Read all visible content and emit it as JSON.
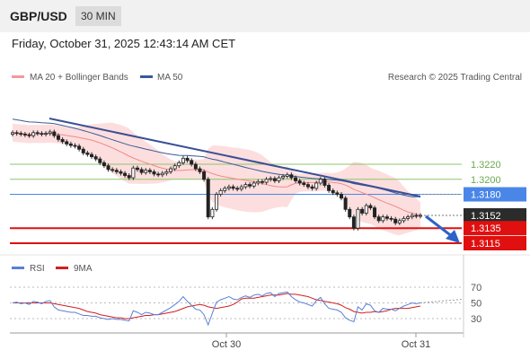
{
  "header": {
    "pair": "GBP/USD",
    "timeframe": "30 MIN"
  },
  "datetime": "Friday, October 31, 2025 12:43:14 AM CET",
  "legend": {
    "ma20": "MA 20 + Bollinger Bands",
    "ma50": "MA 50",
    "credit": "Research © 2025 Trading Central"
  },
  "rsi_legend": {
    "rsi": "RSI",
    "ma9": "9MA"
  },
  "colors": {
    "bollinger": "#fcd3d3",
    "ma20": "#f08a8a",
    "ma50": "#3a5a9a",
    "trend": "#3a4f96",
    "resistance": "#8cc56a",
    "pivot": "#4a86e8",
    "support": "#e01010",
    "price_box": "#2b2b2b",
    "rsi": "#5b7fd6",
    "rsi_ma": "#d02020"
  },
  "chart_data": [
    {
      "type": "candlestick",
      "title": "",
      "x_ticks": [
        "Oct 30",
        "Oct 31"
      ],
      "ylim": [
        1.3105,
        1.3245
      ],
      "levels": [
        {
          "label": "1.3220",
          "value": 1.322,
          "kind": "resistance"
        },
        {
          "label": "1.3200",
          "value": 1.32,
          "kind": "resistance"
        },
        {
          "label": "1.3180",
          "value": 1.318,
          "kind": "pivot"
        },
        {
          "label": "1.3152",
          "value": 1.3152,
          "kind": "last"
        },
        {
          "label": "1.3135",
          "value": 1.3135,
          "kind": "support"
        },
        {
          "label": "1.3115",
          "value": 1.3115,
          "kind": "support"
        }
      ],
      "close": [
        1.3262,
        1.3261,
        1.326,
        1.3259,
        1.3258,
        1.3262,
        1.3261,
        1.326,
        1.3261,
        1.3263,
        1.3258,
        1.3253,
        1.325,
        1.3247,
        1.3245,
        1.3244,
        1.324,
        1.3235,
        1.3233,
        1.323,
        1.3227,
        1.3222,
        1.3218,
        1.3213,
        1.3212,
        1.321,
        1.3208,
        1.3205,
        1.3202,
        1.3215,
        1.3213,
        1.3209,
        1.3212,
        1.321,
        1.3207,
        1.3206,
        1.3208,
        1.321,
        1.3214,
        1.3218,
        1.3222,
        1.3228,
        1.3225,
        1.322,
        1.3214,
        1.321,
        1.32,
        1.315,
        1.316,
        1.318,
        1.3185,
        1.3188,
        1.319,
        1.3188,
        1.3187,
        1.319,
        1.3193,
        1.3191,
        1.3195,
        1.3197,
        1.3196,
        1.32,
        1.3201,
        1.3198,
        1.3202,
        1.3204,
        1.3206,
        1.3202,
        1.3198,
        1.3195,
        1.3193,
        1.319,
        1.3188,
        1.3195,
        1.32,
        1.3192,
        1.3185,
        1.3182,
        1.318,
        1.3175,
        1.316,
        1.315,
        1.3135,
        1.316,
        1.3155,
        1.3165,
        1.3162,
        1.315,
        1.3145,
        1.315,
        1.3148,
        1.3147,
        1.3142,
        1.3145,
        1.3148,
        1.315,
        1.3152,
        1.3151,
        1.3152
      ],
      "rsi": {
        "ticks": [
          70,
          50,
          30
        ],
        "ylim": [
          20,
          80
        ],
        "values": [
          50,
          51,
          49,
          50,
          48,
          52,
          51,
          49,
          52,
          53,
          45,
          41,
          40,
          39,
          38,
          38,
          36,
          34,
          34,
          33,
          33,
          31,
          30,
          29,
          30,
          29,
          29,
          28,
          27,
          40,
          38,
          35,
          38,
          37,
          35,
          35,
          38,
          41,
          44,
          48,
          52,
          58,
          52,
          47,
          42,
          41,
          35,
          22,
          37,
          51,
          54,
          56,
          58,
          55,
          54,
          57,
          59,
          57,
          60,
          61,
          59,
          62,
          63,
          58,
          62,
          63,
          64,
          58,
          54,
          51,
          50,
          48,
          46,
          53,
          57,
          49,
          43,
          42,
          41,
          38,
          31,
          28,
          26,
          45,
          41,
          49,
          47,
          40,
          38,
          43,
          42,
          42,
          40,
          43,
          46,
          48,
          50,
          49,
          50
        ],
        "ma9": [
          50,
          50,
          50,
          50,
          50,
          50,
          50,
          50,
          50,
          50,
          49,
          48,
          47,
          46,
          45,
          44,
          43,
          41,
          39,
          38,
          37,
          35,
          34,
          33,
          32,
          31,
          31,
          30,
          30,
          31,
          32,
          33,
          34,
          34,
          35,
          35,
          36,
          37,
          38,
          39,
          41,
          43,
          45,
          46,
          47,
          48,
          47,
          45,
          44,
          43,
          44,
          45,
          46,
          48,
          51,
          55,
          56,
          56,
          56,
          57,
          58,
          59,
          60,
          60,
          60,
          61,
          62,
          61,
          61,
          60,
          59,
          58,
          56,
          54,
          53,
          52,
          51,
          50,
          49,
          47,
          44,
          42,
          39,
          38,
          37,
          38,
          38,
          39,
          38,
          39,
          40,
          42,
          43,
          43,
          43,
          43,
          44,
          45,
          46
        ]
      }
    }
  ]
}
